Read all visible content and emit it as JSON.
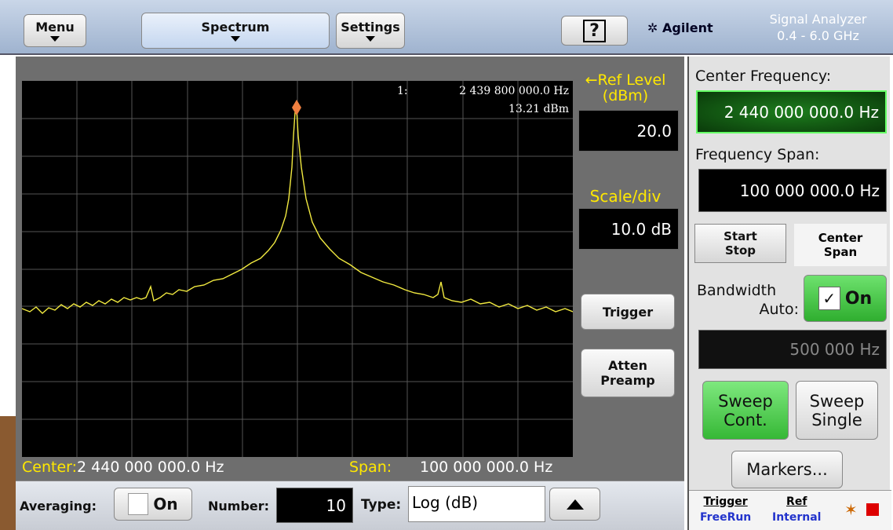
{
  "toolbar": {
    "menu": "Menu",
    "spectrum": "Spectrum",
    "settings": "Settings",
    "help": "?",
    "brand": "Agilent",
    "product": [
      "Signal Analyzer",
      "0.4 - 6.0 GHz"
    ]
  },
  "plot": {
    "marker_index": "1:",
    "marker_frequency": "2 439 800 000.0 Hz",
    "marker_level": "13.21 dBm",
    "center_label": "Center:",
    "center_value": "2 440 000 000.0 Hz",
    "span_label": "Span:",
    "span_value": "100 000 000.0 Hz"
  },
  "side_controls": {
    "ref_level_label": [
      "←Ref Level",
      "(dBm)"
    ],
    "ref_level_value": "20.0",
    "scale_label": "Scale/div",
    "scale_value": "10.0 dB",
    "trigger": "Trigger",
    "atten": [
      "Atten",
      "Preamp"
    ]
  },
  "bottom_bar": {
    "averaging_label": "Averaging:",
    "averaging_toggle": "On",
    "number_label": "Number:",
    "number_value": "10",
    "type_label": "Type:",
    "type_value": "Log (dB)"
  },
  "right_panel": {
    "center_frequency_label": "Center Frequency:",
    "center_frequency_value": "2 440 000 000.0 Hz",
    "frequency_span_label": "Frequency Span:",
    "frequency_span_value": "100 000 000.0 Hz",
    "tab_start_stop": [
      "Start",
      "Stop"
    ],
    "tab_center_span": [
      "Center",
      "Span"
    ],
    "bandwidth_label": [
      "Bandwidth",
      "Auto:"
    ],
    "bandwidth_toggle": "On",
    "bandwidth_value": "500 000 Hz",
    "sweep_cont": [
      "Sweep",
      "Cont."
    ],
    "sweep_single": [
      "Sweep",
      "Single"
    ],
    "markers": "Markers...",
    "status_trigger": [
      "Trigger",
      "FreeRun"
    ],
    "status_ref": [
      "Ref",
      "Internal"
    ]
  }
}
